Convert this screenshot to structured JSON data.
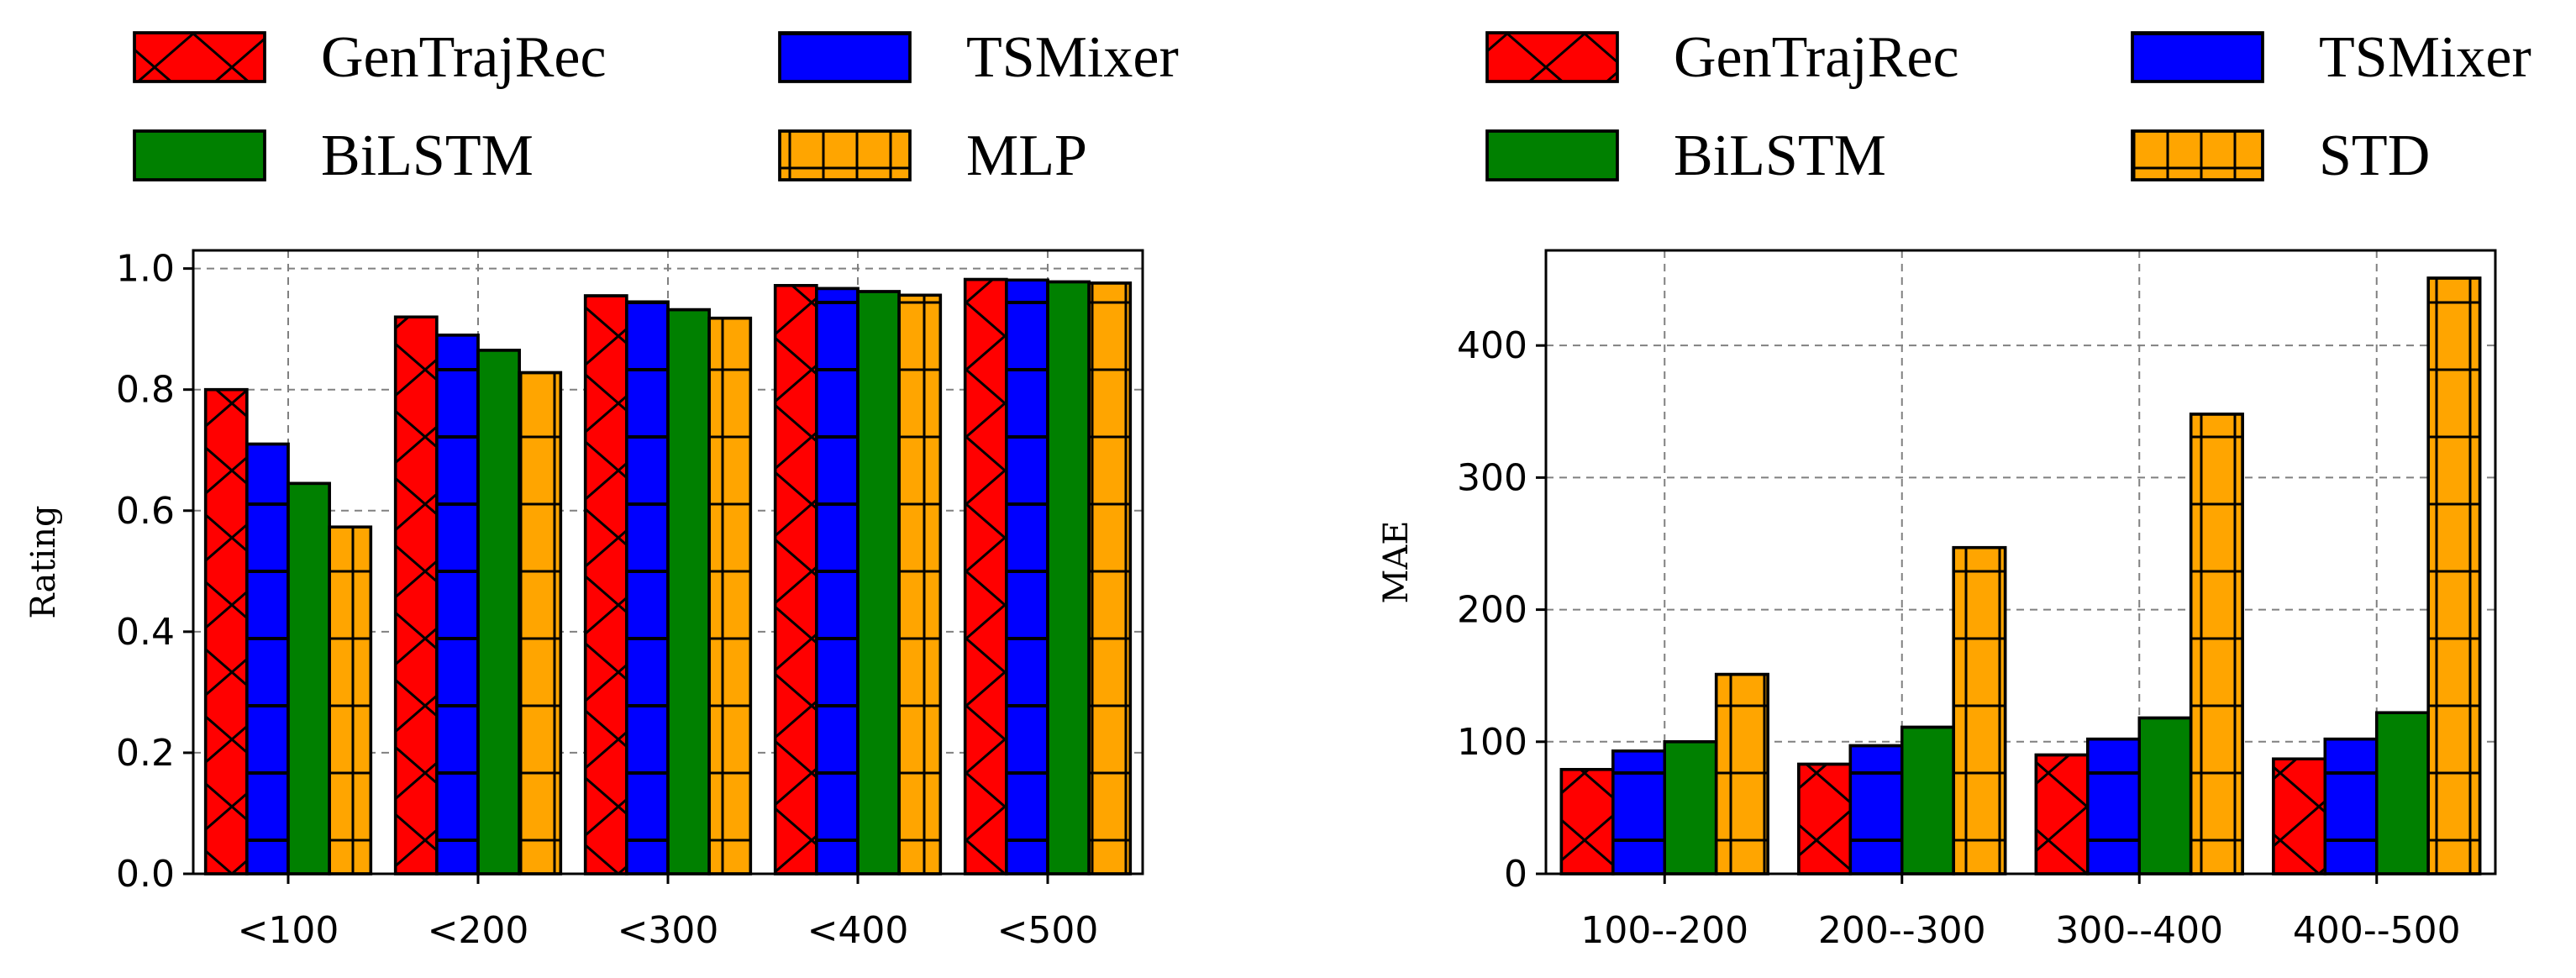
{
  "chart_data": [
    {
      "type": "bar",
      "title": "",
      "xlabel": "",
      "ylabel": "Rating",
      "categories": [
        "<100",
        "<200",
        "<300",
        "<400",
        "<500"
      ],
      "ylim": [
        0,
        1.03
      ],
      "yticks": [
        "0.0",
        "0.2",
        "0.4",
        "0.6",
        "0.8",
        "1.0"
      ],
      "grid": true,
      "legend_position": "above",
      "series": [
        {
          "name": "GenTrajRec",
          "color": "#ff0000",
          "hatch": "x",
          "values": [
            0.8,
            0.92,
            0.955,
            0.972,
            0.982
          ]
        },
        {
          "name": "TSMixer",
          "color": "#0000ff",
          "hatch": "-",
          "values": [
            0.71,
            0.89,
            0.945,
            0.967,
            0.981
          ]
        },
        {
          "name": "BiLSTM",
          "color": "#008000",
          "hatch": "\\",
          "values": [
            0.645,
            0.865,
            0.932,
            0.962,
            0.978
          ]
        },
        {
          "name": "MLP",
          "color": "#ffa500",
          "hatch": "+",
          "values": [
            0.573,
            0.828,
            0.918,
            0.956,
            0.976
          ]
        }
      ]
    },
    {
      "type": "bar",
      "title": "",
      "xlabel": "",
      "ylabel": "MAE",
      "categories": [
        "100--200",
        "200--300",
        "300--400",
        "400--500"
      ],
      "ylim": [
        0,
        472
      ],
      "yticks": [
        "0",
        "100",
        "200",
        "300",
        "400"
      ],
      "grid": true,
      "legend_position": "above",
      "series": [
        {
          "name": "GenTrajRec",
          "color": "#ff0000",
          "hatch": "x",
          "values": [
            79,
            83,
            90,
            87
          ]
        },
        {
          "name": "TSMixer",
          "color": "#0000ff",
          "hatch": "-",
          "values": [
            93,
            97,
            102,
            102
          ]
        },
        {
          "name": "BiLSTM",
          "color": "#008000",
          "hatch": "\\",
          "values": [
            100,
            111,
            118,
            122
          ]
        },
        {
          "name": "STD",
          "color": "#ffa500",
          "hatch": "+",
          "values": [
            151,
            247,
            348,
            451
          ]
        }
      ]
    }
  ]
}
